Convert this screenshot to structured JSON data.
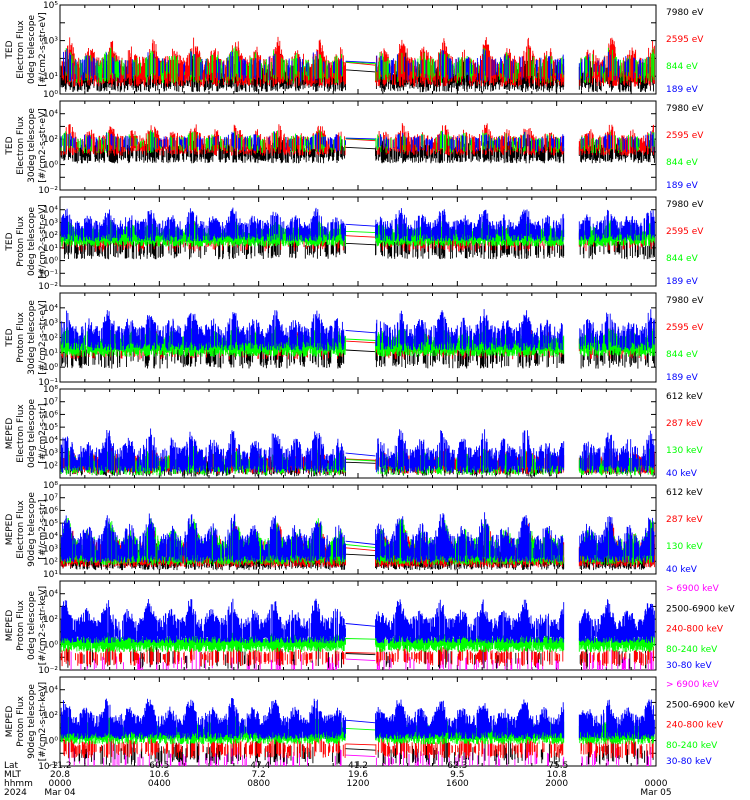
{
  "colors": {
    "black": "#000000",
    "red": "#ff0000",
    "green": "#00ff00",
    "blue": "#0000ff",
    "magenta": "#ff00ff",
    "background": "#ffffff"
  },
  "chart_data": [
    {
      "type": "line",
      "panel": "1",
      "ylabel": [
        "TED",
        "Electron Flux",
        "0deg telescope",
        "[#/cm2-s-str-eV]"
      ],
      "ylim_exp": [
        0,
        5
      ],
      "y_ticks": [
        {
          "exp": 5,
          "label": "10⁵"
        },
        {
          "exp": 3,
          "label": "10³"
        },
        {
          "exp": 1,
          "label": "10¹"
        },
        {
          "exp": 0,
          "label": "10⁰"
        }
      ],
      "series": [
        {
          "name": "7980 eV",
          "color": "#000000",
          "base": 1.0,
          "spread": 1.2,
          "density": 0.7
        },
        {
          "name": "2595 eV",
          "color": "#ff0000",
          "base": 1.3,
          "spread": 1.6,
          "density": 0.6
        },
        {
          "name": "844 eV",
          "color": "#00ff00",
          "base": 1.5,
          "spread": 1.0,
          "density": 0.25
        },
        {
          "name": "189 eV",
          "color": "#0000ff",
          "base": 1.6,
          "spread": 0.8,
          "density": 0.15
        }
      ]
    },
    {
      "type": "line",
      "panel": "2",
      "ylabel": [
        "TED",
        "Electron Flux",
        "30deg telescope",
        "[#/cm2-s-str-eV]"
      ],
      "ylim_exp": [
        -2,
        5
      ],
      "y_ticks": [
        {
          "exp": 4,
          "label": "10⁴"
        },
        {
          "exp": 2,
          "label": "10²"
        },
        {
          "exp": 0,
          "label": "10⁰"
        },
        {
          "exp": -2,
          "label": "10⁻²"
        }
      ],
      "series": [
        {
          "name": "7980 eV",
          "color": "#000000",
          "base": 1.0,
          "spread": 1.2,
          "density": 0.6
        },
        {
          "name": "2595 eV",
          "color": "#ff0000",
          "base": 1.6,
          "spread": 1.4,
          "density": 0.5
        },
        {
          "name": "844 eV",
          "color": "#00ff00",
          "base": 1.8,
          "spread": 0.8,
          "density": 0.2
        },
        {
          "name": "189 eV",
          "color": "#0000ff",
          "base": 1.9,
          "spread": 0.6,
          "density": 0.2
        }
      ]
    },
    {
      "type": "line",
      "panel": "3",
      "ylabel": [
        "TED",
        "Proton Flux",
        "0deg telescope",
        "[#/cm2-s-str-eV]"
      ],
      "ylim_exp": [
        -2,
        5
      ],
      "y_ticks": [
        {
          "exp": 4,
          "label": "10⁴"
        },
        {
          "exp": 3,
          "label": "10³"
        },
        {
          "exp": 2,
          "label": "10²"
        },
        {
          "exp": 1,
          "label": "10¹"
        },
        {
          "exp": 0,
          "label": "10⁰"
        },
        {
          "exp": -1,
          "label": "10⁻¹"
        },
        {
          "exp": -2,
          "label": "10⁻²"
        }
      ],
      "series": [
        {
          "name": "7980 eV",
          "color": "#000000",
          "base": 1.0,
          "spread": 1.2,
          "density": 0.3
        },
        {
          "name": "2595 eV",
          "color": "#ff0000",
          "base": 1.6,
          "spread": 1.2,
          "density": 0.2
        },
        {
          "name": "844 eV",
          "color": "#00ff00",
          "base": 2.0,
          "spread": 1.0,
          "density": 0.95
        },
        {
          "name": "189 eV",
          "color": "#0000ff",
          "base": 2.4,
          "spread": 1.5,
          "density": 0.6
        }
      ]
    },
    {
      "type": "line",
      "panel": "4",
      "ylabel": [
        "TED",
        "Proton Flux",
        "30deg telescope",
        "[#/cm2-s-str-eV]"
      ],
      "ylim_exp": [
        -1,
        5
      ],
      "y_ticks": [
        {
          "exp": 4,
          "label": "10⁴"
        },
        {
          "exp": 3,
          "label": "10³"
        },
        {
          "exp": 2,
          "label": "10²"
        },
        {
          "exp": 1,
          "label": "10¹"
        },
        {
          "exp": 0,
          "label": "10⁰"
        },
        {
          "exp": -1,
          "label": "10⁻¹"
        }
      ],
      "series": [
        {
          "name": "7980 eV",
          "color": "#000000",
          "base": 0.8,
          "spread": 1.2,
          "density": 0.3
        },
        {
          "name": "2595 eV",
          "color": "#ff0000",
          "base": 1.4,
          "spread": 1.2,
          "density": 0.2
        },
        {
          "name": "844 eV",
          "color": "#00ff00",
          "base": 1.6,
          "spread": 1.0,
          "density": 0.95
        },
        {
          "name": "189 eV",
          "color": "#0000ff",
          "base": 2.0,
          "spread": 1.6,
          "density": 0.6
        }
      ]
    },
    {
      "type": "line",
      "panel": "5",
      "ylabel": [
        "MEPED",
        "Electron Flux",
        "0deg telescope",
        "[#/cm2-s-str]"
      ],
      "ylim_exp": [
        1,
        8
      ],
      "y_ticks": [
        {
          "exp": 8,
          "label": "10⁸"
        },
        {
          "exp": 7,
          "label": "10⁷"
        },
        {
          "exp": 6,
          "label": "10⁶"
        },
        {
          "exp": 5,
          "label": "10⁵"
        },
        {
          "exp": 4,
          "label": "10⁴"
        },
        {
          "exp": 3,
          "label": "10³"
        },
        {
          "exp": 2,
          "label": "10²"
        }
      ],
      "series": [
        {
          "name": "612 keV",
          "color": "#000000",
          "base": 2.0,
          "spread": 0.8,
          "density": 0.4
        },
        {
          "name": "287 keV",
          "color": "#ff0000",
          "base": 2.2,
          "spread": 1.0,
          "density": 0.5
        },
        {
          "name": "130 keV",
          "color": "#00ff00",
          "base": 2.1,
          "spread": 1.2,
          "density": 0.5
        },
        {
          "name": "40 keV",
          "color": "#0000ff",
          "base": 2.3,
          "spread": 2.2,
          "density": 0.6
        }
      ]
    },
    {
      "type": "line",
      "panel": "6",
      "ylabel": [
        "MEPED",
        "Electron Flux",
        "90deg telescope",
        "[#/cm2-s-str]"
      ],
      "ylim_exp": [
        1,
        8
      ],
      "y_ticks": [
        {
          "exp": 8,
          "label": "10⁸"
        },
        {
          "exp": 7,
          "label": "10⁷"
        },
        {
          "exp": 6,
          "label": "10⁶"
        },
        {
          "exp": 5,
          "label": "10⁵"
        },
        {
          "exp": 4,
          "label": "10⁴"
        },
        {
          "exp": 3,
          "label": "10³"
        },
        {
          "exp": 2,
          "label": "10²"
        },
        {
          "exp": 1,
          "label": "10¹"
        }
      ],
      "series": [
        {
          "name": "612 keV",
          "color": "#000000",
          "base": 2.2,
          "spread": 1.2,
          "density": 0.6
        },
        {
          "name": "287 keV",
          "color": "#ff0000",
          "base": 2.4,
          "spread": 2.2,
          "density": 0.7
        },
        {
          "name": "130 keV",
          "color": "#00ff00",
          "base": 2.6,
          "spread": 2.4,
          "density": 0.7
        },
        {
          "name": "40 keV",
          "color": "#0000ff",
          "base": 2.8,
          "spread": 2.6,
          "density": 0.7
        }
      ]
    },
    {
      "type": "line",
      "panel": "7",
      "ylabel": [
        "MEPED",
        "Proton Flux",
        "0deg telescope",
        "[#/cm2-s-str-keV]"
      ],
      "ylim_exp": [
        -2,
        5
      ],
      "y_ticks": [
        {
          "exp": 4,
          "label": "10⁴"
        },
        {
          "exp": 2,
          "label": "10²"
        },
        {
          "exp": 0,
          "label": "10⁰"
        },
        {
          "exp": -2,
          "label": "10⁻²"
        }
      ],
      "series": [
        {
          "name": "> 6900 keV",
          "color": "#ff00ff",
          "base": -1.5,
          "spread": 1.2,
          "density": 0.1
        },
        {
          "name": "2500-6900 keV",
          "color": "#000000",
          "base": -1.0,
          "spread": 1.0,
          "density": 0.1
        },
        {
          "name": "240-800 keV",
          "color": "#ff0000",
          "base": -0.8,
          "spread": 0.6,
          "density": 0.3
        },
        {
          "name": "80-240 keV",
          "color": "#00ff00",
          "base": 0.3,
          "spread": 0.6,
          "density": 0.9
        },
        {
          "name": "30-80 keV",
          "color": "#0000ff",
          "base": 1.0,
          "spread": 2.2,
          "density": 0.8
        }
      ]
    },
    {
      "type": "line",
      "panel": "8",
      "ylabel": [
        "MEPED",
        "Proton Flux",
        "90deg telescope",
        "[#/cm2-s-str-keV]"
      ],
      "ylim_exp": [
        -2,
        5
      ],
      "y_ticks": [
        {
          "exp": 4,
          "label": "10⁴"
        },
        {
          "exp": 2,
          "label": "10²"
        },
        {
          "exp": 0,
          "label": "10⁰"
        },
        {
          "exp": -2,
          "label": "10⁻²"
        }
      ],
      "series": [
        {
          "name": "> 6900 keV",
          "color": "#ff00ff",
          "base": -1.5,
          "spread": 1.2,
          "density": 0.1
        },
        {
          "name": "2500-6900 keV",
          "color": "#000000",
          "base": -1.0,
          "spread": 1.2,
          "density": 0.15
        },
        {
          "name": "240-800 keV",
          "color": "#ff0000",
          "base": -0.5,
          "spread": 0.8,
          "density": 0.3
        },
        {
          "name": "80-240 keV",
          "color": "#00ff00",
          "base": 0.6,
          "spread": 1.2,
          "density": 0.9
        },
        {
          "name": "30-80 keV",
          "color": "#0000ff",
          "base": 1.0,
          "spread": 2.0,
          "density": 0.8
        }
      ]
    }
  ],
  "x_axis": {
    "time_range_hours": [
      0,
      24
    ],
    "data_gaps_hours": [
      [
        11.5,
        12.7
      ],
      [
        20.3,
        20.9
      ]
    ],
    "row_labels": [
      "Lat",
      "MLT",
      "hhmm",
      "2024"
    ],
    "ticks": [
      {
        "hour": 0,
        "lat": "-11.2",
        "mlt": "20.8",
        "hhmm": "0000",
        "date": "Mar 04"
      },
      {
        "hour": 4,
        "lat": "60.5",
        "mlt": "10.6",
        "hhmm": "0400",
        "date": ""
      },
      {
        "hour": 8,
        "lat": "-47.4",
        "mlt": "7.2",
        "hhmm": "0800",
        "date": ""
      },
      {
        "hour": 12,
        "lat": "41.2",
        "mlt": "19.6",
        "hhmm": "1200",
        "date": ""
      },
      {
        "hour": 16,
        "lat": "62.3",
        "mlt": "9.5",
        "hhmm": "1600",
        "date": ""
      },
      {
        "hour": 20,
        "lat": "-75.5",
        "mlt": "10.8",
        "hhmm": "2000",
        "date": ""
      },
      {
        "hour": 24,
        "lat": "",
        "mlt": "",
        "hhmm": "0000",
        "date": "Mar 05"
      }
    ]
  }
}
